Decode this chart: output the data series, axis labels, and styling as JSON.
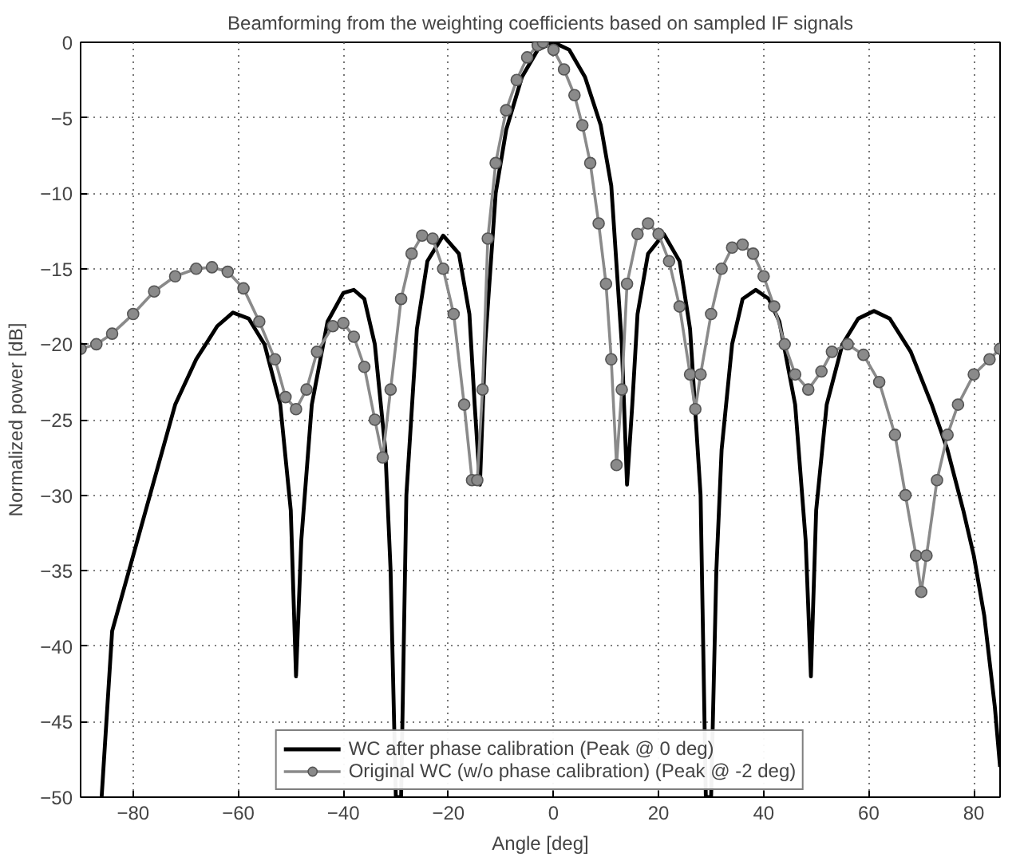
{
  "chart_data": {
    "type": "line",
    "title": "Beamforming from the weighting coefficients based on sampled IF signals",
    "xlabel": "Angle [deg]",
    "ylabel": "Normalized power [dB]",
    "xlim": [
      -90,
      85
    ],
    "ylim": [
      -50,
      0
    ],
    "xticks": [
      -80,
      -60,
      -40,
      -20,
      0,
      20,
      40,
      60,
      80
    ],
    "yticks": [
      -50,
      -45,
      -40,
      -35,
      -30,
      -25,
      -20,
      -15,
      -10,
      -5,
      0
    ],
    "grid": true,
    "legend": "bottom",
    "series": [
      {
        "name": "WC after phase calibration (Peak @ 0 deg)",
        "color": "#000000",
        "marker": "none",
        "x": [
          -86,
          -84,
          -80,
          -76,
          -72,
          -68,
          -64,
          -61,
          -58,
          -55,
          -52,
          -50,
          -49,
          -48,
          -46,
          -43,
          -40,
          -38,
          -36,
          -34,
          -32,
          -31,
          -30,
          -29,
          -28,
          -26,
          -24,
          -21,
          -18,
          -16,
          -15,
          -14,
          -13,
          -11,
          -9,
          -6,
          -3,
          0,
          3,
          6,
          9,
          11,
          13,
          14,
          15,
          16,
          18,
          21,
          24,
          26,
          28,
          29,
          30,
          31,
          32,
          34,
          36,
          38.5,
          41,
          43,
          46,
          48,
          49,
          50,
          52,
          55,
          58,
          61,
          64,
          68,
          72,
          75,
          78,
          80,
          82,
          84,
          85
        ],
        "values": [
          -50,
          -39,
          -34,
          -29,
          -24,
          -21,
          -18.8,
          -17.9,
          -18.3,
          -20,
          -24,
          -31,
          -42,
          -33,
          -24,
          -18.5,
          -16.6,
          -16.4,
          -17,
          -20,
          -27,
          -35,
          -50,
          -50,
          -30,
          -19,
          -14.5,
          -12.8,
          -14,
          -18,
          -24,
          -29.3,
          -20,
          -10,
          -5.8,
          -2.3,
          -0.5,
          0,
          -0.5,
          -2.3,
          -5.5,
          -9.5,
          -20,
          -29.3,
          -24,
          -18,
          -14,
          -12.7,
          -14.5,
          -19,
          -30,
          -50,
          -50,
          -35,
          -27,
          -20,
          -17,
          -16.4,
          -17,
          -18.5,
          -24,
          -33,
          -42,
          -31,
          -24,
          -20,
          -18.3,
          -17.8,
          -18.3,
          -20.5,
          -24,
          -27,
          -31,
          -34,
          -38,
          -44,
          -48
        ]
      },
      {
        "name": "Original WC (w/o phase calibration) (Peak @ -2 deg)",
        "color": "#8a8a8a",
        "marker": "circle",
        "x": [
          -90,
          -87,
          -84,
          -80,
          -76,
          -72,
          -68,
          -65,
          -62,
          -59,
          -56,
          -53,
          -51,
          -49,
          -47,
          -45,
          -42,
          -40,
          -38,
          -36,
          -34,
          -32.5,
          -31,
          -29,
          -27,
          -25,
          -23,
          -21,
          -19,
          -17,
          -15.5,
          -14.5,
          -13.5,
          -12.5,
          -11,
          -9,
          -7,
          -5,
          -3,
          -2,
          0,
          2,
          4,
          5.5,
          7,
          8.6,
          10,
          11,
          12,
          13,
          14,
          16,
          18,
          20,
          22,
          24,
          26,
          27,
          28,
          30,
          32,
          34,
          36,
          38,
          40,
          42,
          44,
          46,
          48.5,
          51,
          53,
          56,
          59,
          62,
          65,
          67,
          69,
          70,
          71,
          73,
          75,
          77,
          80,
          83,
          85
        ],
        "values": [
          -20.3,
          -20,
          -19.3,
          -18,
          -16.5,
          -15.5,
          -15,
          -14.9,
          -15.2,
          -16.3,
          -18.5,
          -21,
          -23.5,
          -24.3,
          -23,
          -20.5,
          -18.8,
          -18.6,
          -19.5,
          -21.5,
          -25,
          -27.5,
          -23,
          -17,
          -14,
          -12.8,
          -13,
          -15,
          -18,
          -24,
          -29,
          -29,
          -23,
          -13,
          -8,
          -4.5,
          -2.5,
          -1,
          -0.2,
          0,
          -0.5,
          -1.8,
          -3.5,
          -5.5,
          -8,
          -12,
          -16,
          -21,
          -28,
          -23,
          -16,
          -12.7,
          -12,
          -12.7,
          -14.5,
          -17.5,
          -22,
          -24.3,
          -22,
          -18,
          -15,
          -13.6,
          -13.4,
          -14,
          -15.5,
          -17.5,
          -20,
          -22,
          -23,
          -21.8,
          -20.5,
          -20,
          -20.7,
          -22.5,
          -26,
          -30,
          -34,
          -36.4,
          -34,
          -29,
          -26,
          -24,
          -22,
          -21,
          -20.3
        ]
      }
    ]
  }
}
